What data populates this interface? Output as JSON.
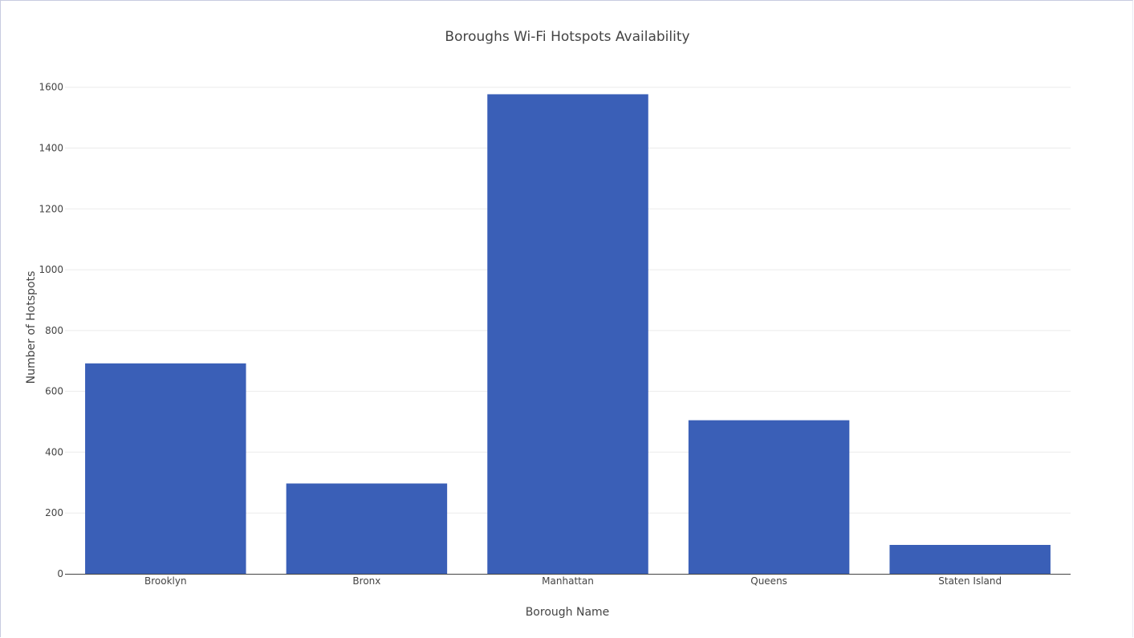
{
  "chart_data": {
    "type": "bar",
    "title": "Boroughs Wi-Fi Hotspots Availability",
    "xlabel": "Borough Name",
    "ylabel": "Number of Hotspots",
    "categories": [
      "Brooklyn",
      "Bronx",
      "Manhattan",
      "Queens",
      "Staten Island"
    ],
    "values": [
      692,
      297,
      1577,
      505,
      95
    ],
    "ylim": [
      0,
      1660
    ],
    "yticks": [
      0,
      200,
      400,
      600,
      800,
      1000,
      1200,
      1400,
      1600
    ],
    "grid": true,
    "bar_color": "#3a5fb7",
    "grid_color": "#ebebeb",
    "axis_color": "#444444"
  }
}
